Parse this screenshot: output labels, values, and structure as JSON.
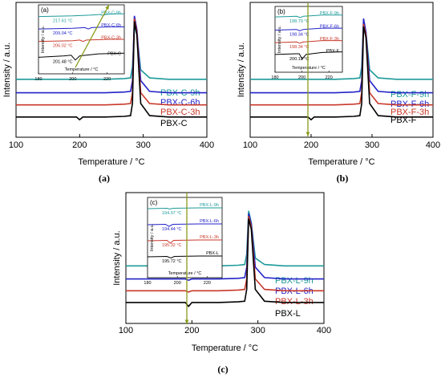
{
  "chart_data": [
    {
      "type": "line",
      "panel": "(a)",
      "caption": "(a)",
      "xlabel": "Temperature / °C",
      "ylabel": "Intensity / a.u.",
      "xlim": [
        100,
        400
      ],
      "xticks": [
        "100",
        "200",
        "300",
        "400"
      ],
      "series": [
        {
          "name": "PBX-C-9h",
          "color": "#1e9a9a",
          "x": [
            100,
            150,
            200,
            240,
            270,
            280,
            283,
            286,
            290,
            296,
            310,
            340,
            370,
            400
          ],
          "y": [
            0.43,
            0.43,
            0.43,
            0.43,
            0.435,
            0.44,
            0.52,
            0.83,
            0.76,
            0.5,
            0.44,
            0.43,
            0.43,
            0.43
          ]
        },
        {
          "name": "PBX-C-6h",
          "color": "#2222c8",
          "x": [
            100,
            150,
            200,
            240,
            270,
            280,
            283,
            286,
            290,
            296,
            310,
            340,
            370,
            400
          ],
          "y": [
            0.33,
            0.33,
            0.33,
            0.33,
            0.335,
            0.34,
            0.42,
            0.9,
            0.8,
            0.42,
            0.34,
            0.33,
            0.33,
            0.33
          ]
        },
        {
          "name": "PBX-C-3h",
          "color": "#c8382a",
          "x": [
            100,
            150,
            200,
            240,
            270,
            280,
            283,
            286,
            290,
            296,
            310,
            340,
            370,
            400
          ],
          "y": [
            0.24,
            0.24,
            0.24,
            0.24,
            0.245,
            0.25,
            0.33,
            0.88,
            0.78,
            0.33,
            0.25,
            0.24,
            0.24,
            0.24
          ]
        },
        {
          "name": "PBX-C",
          "color": "#000000",
          "x": [
            100,
            150,
            195,
            200,
            205,
            240,
            270,
            280,
            283,
            286,
            290,
            296,
            310,
            340,
            370,
            400
          ],
          "y": [
            0.15,
            0.15,
            0.15,
            0.13,
            0.15,
            0.15,
            0.155,
            0.16,
            0.25,
            0.86,
            0.76,
            0.25,
            0.16,
            0.15,
            0.15,
            0.15
          ]
        }
      ],
      "inset": {
        "xlim": [
          180,
          230
        ],
        "xticks": [
          "180",
          "200",
          "220"
        ],
        "xlabel": "Temperature / °C",
        "ylabel": "Intensity / a.u.",
        "series": [
          {
            "name": "PBX-C-9h",
            "color": "#1e9a9a",
            "x": [
              180,
              200,
              210,
              216,
              217.6,
              219,
              225,
              231
            ],
            "y": [
              0.83,
              0.84,
              0.85,
              0.86,
              0.845,
              0.86,
              0.87,
              0.87
            ]
          },
          {
            "name": "PBX-C-6h",
            "color": "#2222c8",
            "x": [
              180,
              200,
              207,
              209,
              211,
              220,
              231
            ],
            "y": [
              0.65,
              0.66,
              0.67,
              0.65,
              0.67,
              0.68,
              0.68
            ]
          },
          {
            "name": "PBX-C-3h",
            "color": "#c8382a",
            "x": [
              180,
              200,
              204,
              206,
              208,
              220,
              231
            ],
            "y": [
              0.47,
              0.48,
              0.49,
              0.47,
              0.49,
              0.5,
              0.5
            ]
          },
          {
            "name": "PBX-C",
            "color": "#000000",
            "x": [
              180,
              195,
              199,
              201.5,
              204,
              215,
              231
            ],
            "y": [
              0.24,
              0.26,
              0.27,
              0.2,
              0.26,
              0.29,
              0.3
            ]
          }
        ],
        "annotations": [
          "217.61 °C",
          "209.04 °C",
          "206.02 °C",
          "201.48 °C"
        ]
      }
    },
    {
      "type": "line",
      "panel": "(b)",
      "caption": "(b)",
      "xlabel": "Temperature / °C",
      "ylabel": "Intensity / a.u.",
      "xlim": [
        100,
        400
      ],
      "xticks": [
        "100",
        "200",
        "300",
        "400"
      ],
      "series": [
        {
          "name": "PBX-F-9h",
          "color": "#1e9a9a",
          "x": [
            100,
            150,
            200,
            240,
            270,
            280,
            283,
            286,
            290,
            296,
            310,
            340,
            370,
            400
          ],
          "y": [
            0.43,
            0.43,
            0.43,
            0.43,
            0.435,
            0.44,
            0.52,
            0.87,
            0.78,
            0.5,
            0.44,
            0.43,
            0.43,
            0.43
          ]
        },
        {
          "name": "PBX-F-6h",
          "color": "#2222c8",
          "x": [
            100,
            150,
            200,
            240,
            270,
            280,
            283,
            286,
            290,
            296,
            310,
            340,
            370,
            400
          ],
          "y": [
            0.33,
            0.33,
            0.33,
            0.33,
            0.335,
            0.34,
            0.42,
            0.88,
            0.78,
            0.42,
            0.34,
            0.33,
            0.33,
            0.33
          ]
        },
        {
          "name": "PBX-F-3h",
          "color": "#c8382a",
          "x": [
            100,
            150,
            200,
            240,
            270,
            280,
            283,
            286,
            290,
            296,
            310,
            340,
            370,
            400
          ],
          "y": [
            0.24,
            0.24,
            0.24,
            0.24,
            0.245,
            0.25,
            0.33,
            0.84,
            0.76,
            0.33,
            0.25,
            0.24,
            0.24,
            0.24
          ]
        },
        {
          "name": "PBX-F",
          "color": "#000000",
          "x": [
            100,
            150,
            195,
            200,
            205,
            240,
            270,
            280,
            283,
            286,
            290,
            296,
            310,
            340,
            370,
            400
          ],
          "y": [
            0.15,
            0.15,
            0.15,
            0.13,
            0.15,
            0.15,
            0.155,
            0.16,
            0.25,
            0.82,
            0.74,
            0.25,
            0.16,
            0.15,
            0.15,
            0.15
          ]
        }
      ],
      "inset": {
        "xlim": [
          180,
          230
        ],
        "xticks": [
          "180",
          "200",
          "220"
        ],
        "xlabel": "Temperature / °C",
        "ylabel": "Intensity / a.u.",
        "series": [
          {
            "name": "PBX-F-9h",
            "color": "#1e9a9a",
            "x": [
              180,
              196,
              198.8,
              201,
              215,
              231
            ],
            "y": [
              0.84,
              0.85,
              0.83,
              0.85,
              0.87,
              0.87
            ]
          },
          {
            "name": "PBX-F-6h",
            "color": "#2222c8",
            "x": [
              180,
              196,
              198.3,
              201,
              215,
              231
            ],
            "y": [
              0.64,
              0.65,
              0.63,
              0.65,
              0.67,
              0.67
            ]
          },
          {
            "name": "PBX-F-3h",
            "color": "#c8382a",
            "x": [
              180,
              196,
              198.3,
              201,
              215,
              231
            ],
            "y": [
              0.45,
              0.46,
              0.44,
              0.46,
              0.48,
              0.48
            ]
          },
          {
            "name": "PBX-F",
            "color": "#000000",
            "x": [
              180,
              195,
              198,
              200.1,
              203,
              215,
              231
            ],
            "y": [
              0.27,
              0.28,
              0.28,
              0.2,
              0.27,
              0.3,
              0.31
            ]
          }
        ],
        "annotations": [
          "198.79 °C",
          "198.34 °C",
          "198.34 °C",
          "200.12 °C"
        ]
      }
    },
    {
      "type": "line",
      "panel": "(c)",
      "caption": "(c)",
      "xlabel": "Temperature / °C",
      "ylabel": "Intensity / a.u.",
      "xlim": [
        100,
        400
      ],
      "xticks": [
        "100",
        "200",
        "300",
        "400"
      ],
      "series": [
        {
          "name": "PBX-L-9h",
          "color": "#1e9a9a",
          "x": [
            100,
            150,
            190,
            195,
            200,
            240,
            270,
            280,
            283,
            286,
            290,
            296,
            310,
            340,
            370,
            400
          ],
          "y": [
            0.44,
            0.44,
            0.44,
            0.43,
            0.44,
            0.44,
            0.445,
            0.45,
            0.53,
            0.86,
            0.77,
            0.5,
            0.45,
            0.44,
            0.44,
            0.44
          ]
        },
        {
          "name": "PBX-L-6h",
          "color": "#2222c8",
          "x": [
            100,
            150,
            190,
            195,
            200,
            240,
            270,
            280,
            283,
            286,
            290,
            296,
            310,
            340,
            370,
            400
          ],
          "y": [
            0.34,
            0.34,
            0.34,
            0.33,
            0.34,
            0.34,
            0.345,
            0.35,
            0.43,
            0.84,
            0.76,
            0.43,
            0.35,
            0.34,
            0.34,
            0.34
          ]
        },
        {
          "name": "PBX-L-3h",
          "color": "#c8382a",
          "x": [
            100,
            150,
            190,
            195,
            200,
            240,
            270,
            280,
            283,
            286,
            290,
            296,
            310,
            340,
            370,
            400
          ],
          "y": [
            0.25,
            0.25,
            0.25,
            0.24,
            0.25,
            0.25,
            0.255,
            0.26,
            0.34,
            0.82,
            0.74,
            0.34,
            0.26,
            0.25,
            0.25,
            0.25
          ]
        },
        {
          "name": "PBX-L",
          "color": "#000000",
          "x": [
            100,
            150,
            190,
            195,
            200,
            240,
            270,
            280,
            283,
            286,
            290,
            296,
            310,
            340,
            370,
            400
          ],
          "y": [
            0.16,
            0.16,
            0.16,
            0.13,
            0.16,
            0.16,
            0.165,
            0.17,
            0.26,
            0.8,
            0.72,
            0.26,
            0.17,
            0.16,
            0.16,
            0.16
          ]
        }
      ],
      "inset": {
        "xlim": [
          180,
          230
        ],
        "xticks": [
          "180",
          "200",
          "220"
        ],
        "xlabel": "Temperature / °C",
        "ylabel": "Intensity / a.u.",
        "series": [
          {
            "name": "PBX-L-9h",
            "color": "#1e9a9a",
            "x": [
              180,
              193,
              195,
              197,
              215,
              231
            ],
            "y": [
              0.86,
              0.865,
              0.855,
              0.865,
              0.87,
              0.87
            ]
          },
          {
            "name": "PBX-L-6h",
            "color": "#2222c8",
            "x": [
              180,
              192,
              194.4,
              197,
              215,
              231
            ],
            "y": [
              0.66,
              0.665,
              0.64,
              0.665,
              0.67,
              0.67
            ]
          },
          {
            "name": "PBX-L-3h",
            "color": "#c8382a",
            "x": [
              180,
              193,
              195.3,
              197.5,
              215,
              231
            ],
            "y": [
              0.46,
              0.465,
              0.43,
              0.465,
              0.47,
              0.47
            ]
          },
          {
            "name": "PBX-L",
            "color": "#000000",
            "x": [
              180,
              193,
              195.7,
              198,
              215,
              231
            ],
            "y": [
              0.26,
              0.265,
              0.245,
              0.265,
              0.27,
              0.27
            ]
          }
        ],
        "annotations": [
          "194.97 °C",
          "194.44 °C",
          "195.32 °C",
          "195.72 °C"
        ]
      }
    }
  ]
}
